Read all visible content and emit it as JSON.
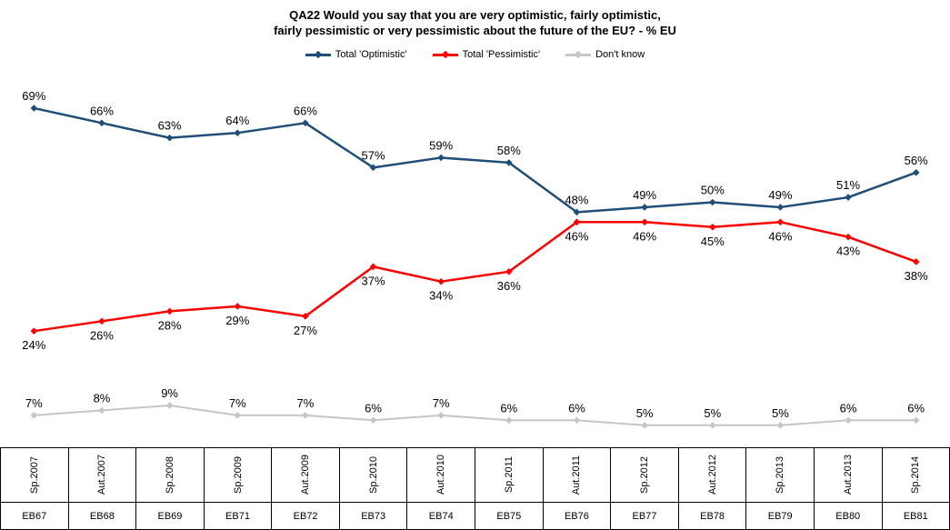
{
  "title": {
    "line1": "QA22 Would you say that you are very optimistic, fairly optimistic,",
    "line2": "fairly pessimistic or very pessimistic about the future of the EU? - % EU"
  },
  "chart_data": {
    "type": "line",
    "categories": [
      {
        "wave": "Sp.2007",
        "eb": "EB67"
      },
      {
        "wave": "Aut.2007",
        "eb": "EB68"
      },
      {
        "wave": "Sp.2008",
        "eb": "EB69"
      },
      {
        "wave": "Sp.2009",
        "eb": "EB71"
      },
      {
        "wave": "Aut.2009",
        "eb": "EB72"
      },
      {
        "wave": "Sp.2010",
        "eb": "EB73"
      },
      {
        "wave": "Aut.2010",
        "eb": "EB74"
      },
      {
        "wave": "Sp.2011",
        "eb": "EB75"
      },
      {
        "wave": "Aut.2011",
        "eb": "EB76"
      },
      {
        "wave": "Sp.2012",
        "eb": "EB77"
      },
      {
        "wave": "Aut.2012",
        "eb": "EB78"
      },
      {
        "wave": "Sp.2013",
        "eb": "EB79"
      },
      {
        "wave": "Aut.2013",
        "eb": "EB80"
      },
      {
        "wave": "Sp.2014",
        "eb": "EB81"
      }
    ],
    "series": [
      {
        "id": "optimistic",
        "name": "Total 'Optimistic'",
        "color": "#1F4E79",
        "stroke_width": 2.5,
        "label_position": "above",
        "values": [
          69,
          66,
          63,
          64,
          66,
          57,
          59,
          58,
          48,
          49,
          50,
          49,
          51,
          56
        ]
      },
      {
        "id": "pessimistic",
        "name": "Total 'Pessimistic'",
        "color": "#FF0000",
        "stroke_width": 2.5,
        "label_position": "below",
        "values": [
          24,
          26,
          28,
          29,
          27,
          37,
          34,
          36,
          46,
          46,
          45,
          46,
          43,
          38
        ]
      },
      {
        "id": "dont-know",
        "name": "Don't know",
        "color": "#C6C6C6",
        "stroke_width": 2,
        "label_position": "above",
        "values": [
          7,
          8,
          9,
          7,
          7,
          6,
          7,
          6,
          6,
          5,
          5,
          5,
          6,
          6
        ]
      }
    ],
    "unit": "%",
    "ylim": [
      0,
      80
    ],
    "grid": false,
    "legend_position": "top"
  }
}
